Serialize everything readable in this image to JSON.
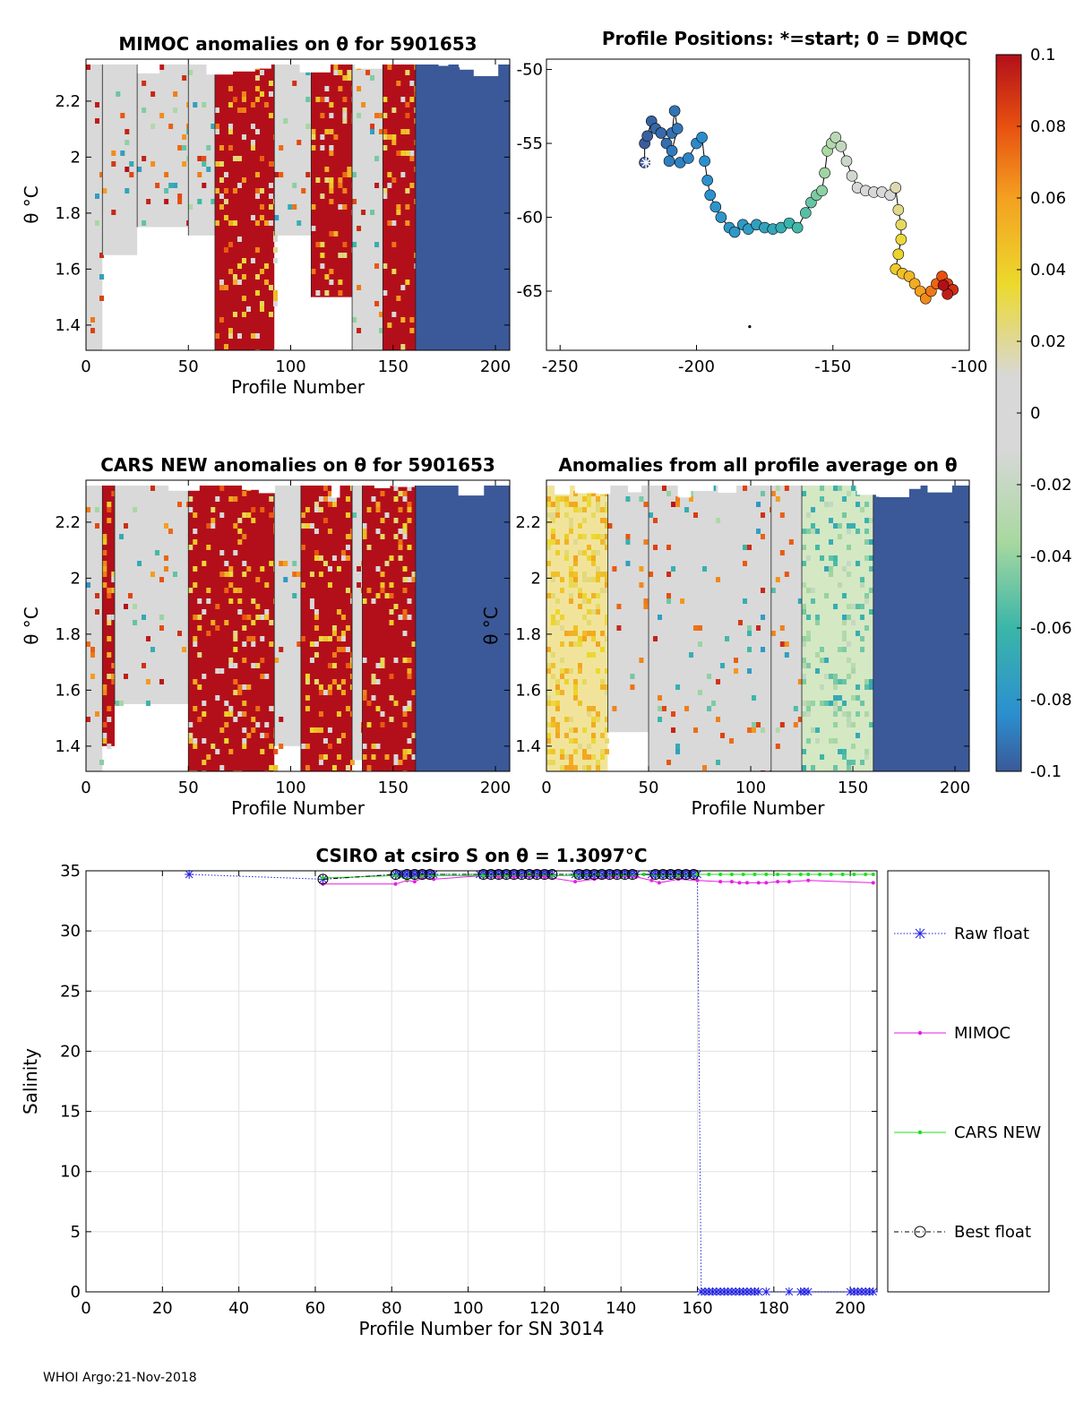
{
  "footer": "WHOI Argo:21-Nov-2018",
  "chart_data": [
    {
      "type": "heatmap",
      "title": "MIMOC anomalies on θ  for 5901653",
      "xlabel": "Profile Number",
      "ylabel": "θ °C",
      "xlim": [
        0,
        207
      ],
      "ylim": [
        1.31,
        2.35
      ],
      "xticks": [
        0,
        50,
        100,
        150,
        200
      ],
      "yticks": [
        1.4,
        1.6,
        1.8,
        2,
        2.2
      ],
      "bands": [
        {
          "x": [
            0,
            8
          ],
          "ymin": 1.31,
          "level": "light"
        },
        {
          "x": [
            8,
            25
          ],
          "ymin": 1.65,
          "level": "light"
        },
        {
          "x": [
            25,
            50
          ],
          "ymin": 1.75,
          "level": "light"
        },
        {
          "x": [
            50,
            63
          ],
          "ymin": 1.72,
          "level": "light"
        },
        {
          "x": [
            63,
            92
          ],
          "ymin": 1.31,
          "level": "high"
        },
        {
          "x": [
            92,
            110
          ],
          "ymin": 1.72,
          "level": "light"
        },
        {
          "x": [
            110,
            130
          ],
          "ymin": 1.5,
          "level": "high"
        },
        {
          "x": [
            130,
            145
          ],
          "ymin": 1.31,
          "level": "light"
        },
        {
          "x": [
            145,
            161
          ],
          "ymin": 1.31,
          "level": "high"
        },
        {
          "x": [
            161,
            207
          ],
          "ymin": 1.31,
          "level": "low"
        }
      ]
    },
    {
      "type": "scatter",
      "title": "Profile Positions: *=start; 0 = DMQC",
      "xlim": [
        -255,
        -100
      ],
      "ylim": [
        -69,
        -49.3
      ],
      "xticks": [
        -250,
        -200,
        -150,
        -100
      ],
      "yticks": [
        -50,
        -55,
        -60,
        -65
      ],
      "start": {
        "x": -218.5,
        "y": -56.3
      },
      "dmqc": {
        "x": -180.5,
        "y": -67.4
      },
      "track": [
        {
          "x": -219,
          "y": -56.3,
          "c": -0.1
        },
        {
          "x": -219,
          "y": -55,
          "c": -0.099
        },
        {
          "x": -218,
          "y": -54.5,
          "c": -0.098
        },
        {
          "x": -216.5,
          "y": -53.5,
          "c": -0.097
        },
        {
          "x": -215,
          "y": -54,
          "c": -0.096
        },
        {
          "x": -213,
          "y": -54.3,
          "c": -0.095
        },
        {
          "x": -211,
          "y": -55,
          "c": -0.094
        },
        {
          "x": -209,
          "y": -54.3,
          "c": -0.093
        },
        {
          "x": -208,
          "y": -52.8,
          "c": -0.092
        },
        {
          "x": -207,
          "y": -54,
          "c": -0.091
        },
        {
          "x": -209,
          "y": -55.5,
          "c": -0.09
        },
        {
          "x": -210,
          "y": -56.2,
          "c": -0.089
        },
        {
          "x": -206,
          "y": -56.3,
          "c": -0.088
        },
        {
          "x": -203,
          "y": -56,
          "c": -0.087
        },
        {
          "x": -200,
          "y": -55,
          "c": -0.086
        },
        {
          "x": -198,
          "y": -54.6,
          "c": -0.085
        },
        {
          "x": -197,
          "y": -56.2,
          "c": -0.084
        },
        {
          "x": -196,
          "y": -57.5,
          "c": -0.083
        },
        {
          "x": -195,
          "y": -58.5,
          "c": -0.082
        },
        {
          "x": -193,
          "y": -59.3,
          "c": -0.081
        },
        {
          "x": -191,
          "y": -60,
          "c": -0.08
        },
        {
          "x": -188,
          "y": -60.7,
          "c": -0.079
        },
        {
          "x": -186,
          "y": -61,
          "c": -0.078
        },
        {
          "x": -183,
          "y": -60.5,
          "c": -0.077
        },
        {
          "x": -181,
          "y": -60.8,
          "c": -0.076
        },
        {
          "x": -178,
          "y": -60.5,
          "c": -0.074
        },
        {
          "x": -175,
          "y": -60.7,
          "c": -0.072
        },
        {
          "x": -172,
          "y": -60.8,
          "c": -0.07
        },
        {
          "x": -169,
          "y": -60.7,
          "c": -0.066
        },
        {
          "x": -166,
          "y": -60.4,
          "c": -0.062
        },
        {
          "x": -163,
          "y": -60.7,
          "c": -0.058
        },
        {
          "x": -160,
          "y": -59.7,
          "c": -0.054
        },
        {
          "x": -158,
          "y": -59,
          "c": -0.05
        },
        {
          "x": -156,
          "y": -58.5,
          "c": -0.046
        },
        {
          "x": -154,
          "y": -58.2,
          "c": -0.042
        },
        {
          "x": -153,
          "y": -57,
          "c": -0.038
        },
        {
          "x": -152,
          "y": -55.5,
          "c": -0.034
        },
        {
          "x": -150.5,
          "y": -55,
          "c": -0.03
        },
        {
          "x": -149,
          "y": -54.6,
          "c": -0.026
        },
        {
          "x": -147,
          "y": -55.2,
          "c": -0.022
        },
        {
          "x": -145,
          "y": -56.2,
          "c": -0.018
        },
        {
          "x": -143,
          "y": -57.2,
          "c": -0.014
        },
        {
          "x": -141,
          "y": -58,
          "c": -0.01
        },
        {
          "x": -138,
          "y": -58.2,
          "c": -0.006
        },
        {
          "x": -135,
          "y": -58.3,
          "c": -0.002
        },
        {
          "x": -132,
          "y": -58.3,
          "c": 0.004
        },
        {
          "x": -129,
          "y": -58.5,
          "c": 0.01
        },
        {
          "x": -127,
          "y": -58,
          "c": 0.016
        },
        {
          "x": -126,
          "y": -59.5,
          "c": 0.022
        },
        {
          "x": -125,
          "y": -60.5,
          "c": 0.028
        },
        {
          "x": -125,
          "y": -61.5,
          "c": 0.034
        },
        {
          "x": -126,
          "y": -62.5,
          "c": 0.038
        },
        {
          "x": -127,
          "y": -63.5,
          "c": 0.042
        },
        {
          "x": -124.5,
          "y": -63.8,
          "c": 0.046
        },
        {
          "x": -122,
          "y": -64,
          "c": 0.05
        },
        {
          "x": -120,
          "y": -64.5,
          "c": 0.055
        },
        {
          "x": -118,
          "y": -65,
          "c": 0.06
        },
        {
          "x": -116,
          "y": -65.5,
          "c": 0.065
        },
        {
          "x": -114,
          "y": -65,
          "c": 0.07
        },
        {
          "x": -112,
          "y": -64.5,
          "c": 0.075
        },
        {
          "x": -110,
          "y": -64,
          "c": 0.08
        },
        {
          "x": -108,
          "y": -64.5,
          "c": 0.085
        },
        {
          "x": -106,
          "y": -64.9,
          "c": 0.09
        },
        {
          "x": -108,
          "y": -65.2,
          "c": 0.095
        },
        {
          "x": -109.5,
          "y": -64.6,
          "c": 0.1
        }
      ],
      "colorbar": {
        "range": [
          -0.1,
          0.1
        ],
        "ticks": [
          "0.1",
          "0.08",
          "0.06",
          "0.04",
          "0.02",
          "0",
          "-0.02",
          "-0.04",
          "-0.06",
          "-0.08",
          "-0.1"
        ]
      }
    },
    {
      "type": "heatmap",
      "title": "CARS NEW anomalies on θ for 5901653",
      "xlabel": "Profile Number",
      "ylabel": "θ °C",
      "xlim": [
        0,
        207
      ],
      "ylim": [
        1.31,
        2.35
      ],
      "xticks": [
        0,
        50,
        100,
        150,
        200
      ],
      "yticks": [
        1.4,
        1.6,
        1.8,
        2,
        2.2
      ],
      "bands": [
        {
          "x": [
            0,
            8
          ],
          "ymin": 1.31,
          "level": "light"
        },
        {
          "x": [
            8,
            14
          ],
          "ymin": 1.4,
          "level": "high"
        },
        {
          "x": [
            14,
            50
          ],
          "ymin": 1.55,
          "level": "light"
        },
        {
          "x": [
            50,
            92
          ],
          "ymin": 1.31,
          "level": "high"
        },
        {
          "x": [
            92,
            105
          ],
          "ymin": 1.4,
          "level": "light"
        },
        {
          "x": [
            105,
            130
          ],
          "ymin": 1.31,
          "level": "high"
        },
        {
          "x": [
            130,
            135
          ],
          "ymin": 1.35,
          "level": "light"
        },
        {
          "x": [
            135,
            161
          ],
          "ymin": 1.31,
          "level": "high"
        },
        {
          "x": [
            161,
            207
          ],
          "ymin": 1.31,
          "level": "low"
        }
      ]
    },
    {
      "type": "heatmap",
      "title": "Anomalies from all profile average on θ",
      "xlabel": "Profile Number",
      "ylabel": "θ °C",
      "xlim": [
        0,
        207
      ],
      "ylim": [
        1.31,
        2.35
      ],
      "xticks": [
        0,
        50,
        100,
        150,
        200
      ],
      "yticks": [
        1.4,
        1.6,
        1.8,
        2,
        2.2
      ],
      "bands": [
        {
          "x": [
            0,
            30
          ],
          "ymin": 1.31,
          "level": "warm"
        },
        {
          "x": [
            30,
            50
          ],
          "ymin": 1.45,
          "level": "light"
        },
        {
          "x": [
            50,
            110
          ],
          "ymin": 1.31,
          "level": "light"
        },
        {
          "x": [
            110,
            125
          ],
          "ymin": 1.31,
          "level": "light"
        },
        {
          "x": [
            125,
            160
          ],
          "ymin": 1.31,
          "level": "cool"
        },
        {
          "x": [
            160,
            207
          ],
          "ymin": 1.31,
          "level": "low"
        }
      ]
    },
    {
      "type": "line",
      "title": "CSIRO at csiro S on θ = 1.3097°C",
      "xlabel": "Profile Number for SN 3014",
      "ylabel": "Salinity",
      "xlim": [
        0,
        207
      ],
      "ylim": [
        0,
        35
      ],
      "xticks": [
        0,
        20,
        40,
        60,
        80,
        100,
        120,
        140,
        160,
        180,
        200
      ],
      "yticks": [
        0,
        5,
        10,
        15,
        20,
        25,
        30,
        35
      ],
      "grid": true,
      "legend_position": "right",
      "series": [
        {
          "name": "Raw float",
          "color": "#1f1fdf",
          "x": [
            27,
            62,
            81,
            82,
            83,
            84,
            85,
            86,
            87,
            88,
            89,
            90,
            91,
            103,
            104,
            105,
            106,
            107,
            108,
            109,
            110,
            111,
            112,
            113,
            114,
            115,
            116,
            117,
            118,
            119,
            120,
            121,
            122,
            128,
            129,
            130,
            131,
            132,
            133,
            134,
            135,
            136,
            137,
            138,
            139,
            140,
            141,
            142,
            143,
            144,
            148,
            149,
            150,
            151,
            152,
            153,
            154,
            155,
            156,
            157,
            158,
            159,
            160,
            161,
            162,
            163,
            164,
            165,
            166,
            167,
            168,
            169,
            170,
            171,
            172,
            173,
            174,
            175,
            176,
            178,
            184,
            187,
            188,
            189,
            200,
            201,
            202,
            203,
            204,
            205,
            206
          ],
          "values": [
            34.7,
            34.3,
            34.7,
            34.7,
            34.7,
            34.7,
            34.7,
            34.7,
            34.7,
            34.7,
            34.7,
            34.7,
            34.7,
            34.7,
            34.7,
            34.7,
            34.7,
            34.7,
            34.7,
            34.7,
            34.7,
            34.7,
            34.7,
            34.7,
            34.7,
            34.7,
            34.7,
            34.7,
            34.7,
            34.7,
            34.7,
            34.7,
            34.7,
            34.7,
            34.7,
            34.7,
            34.7,
            34.7,
            34.7,
            34.7,
            34.7,
            34.7,
            34.7,
            34.7,
            34.7,
            34.7,
            34.7,
            34.7,
            34.7,
            34.7,
            34.7,
            34.7,
            34.7,
            34.7,
            34.7,
            34.7,
            34.7,
            34.7,
            34.7,
            34.7,
            34.7,
            34.7,
            34.7,
            0,
            0,
            0,
            0,
            0,
            0,
            0,
            0,
            0,
            0,
            0,
            0,
            0,
            0,
            0,
            0,
            0,
            0,
            0,
            0,
            0,
            0,
            0,
            0,
            0,
            0,
            0,
            0
          ]
        },
        {
          "name": "MIMOC",
          "color": "#e61ee6",
          "x": [
            62,
            81,
            84,
            86,
            88,
            91,
            104,
            108,
            112,
            116,
            120,
            128,
            133,
            138,
            144,
            148,
            150,
            155,
            160,
            166,
            169,
            171,
            173,
            176,
            178,
            181,
            184,
            189,
            206
          ],
          "values": [
            33.9,
            33.9,
            34.2,
            34.1,
            34.4,
            34.3,
            34.6,
            34.5,
            34.5,
            34.6,
            34.5,
            34.1,
            34.3,
            34.5,
            34.5,
            34.2,
            34.0,
            34.3,
            34.2,
            34.1,
            34.1,
            34.0,
            34.0,
            34.0,
            34.0,
            34.1,
            34.1,
            34.2,
            34.0
          ]
        },
        {
          "name": "CARS NEW",
          "color": "#1fdf1f",
          "x": [
            62,
            81,
            84,
            88,
            91,
            104,
            110,
            116,
            122,
            128,
            134,
            140,
            146,
            150,
            155,
            160,
            163,
            166,
            169,
            172,
            175,
            178,
            181,
            184,
            187,
            189,
            192,
            195,
            198,
            201,
            204,
            206
          ],
          "values": [
            34.4,
            34.6,
            34.3,
            34.6,
            34.6,
            34.6,
            34.6,
            34.7,
            34.6,
            34.6,
            34.7,
            34.6,
            34.7,
            34.6,
            34.6,
            34.7,
            34.7,
            34.7,
            34.7,
            34.7,
            34.7,
            34.7,
            34.7,
            34.7,
            34.7,
            34.7,
            34.7,
            34.7,
            34.7,
            34.7,
            34.7,
            34.7
          ]
        },
        {
          "name": "Best float",
          "color": "#000000",
          "x": [
            62,
            81,
            84,
            86,
            88,
            90,
            104,
            106,
            108,
            110,
            112,
            114,
            116,
            118,
            120,
            122,
            129,
            131,
            133,
            135,
            137,
            139,
            141,
            143,
            149,
            151,
            153,
            155,
            157,
            159
          ],
          "values": [
            34.3,
            34.7,
            34.7,
            34.7,
            34.7,
            34.7,
            34.7,
            34.7,
            34.7,
            34.7,
            34.7,
            34.7,
            34.7,
            34.7,
            34.7,
            34.7,
            34.7,
            34.7,
            34.7,
            34.7,
            34.7,
            34.7,
            34.7,
            34.7,
            34.7,
            34.7,
            34.7,
            34.7,
            34.7,
            34.7
          ]
        }
      ]
    }
  ]
}
